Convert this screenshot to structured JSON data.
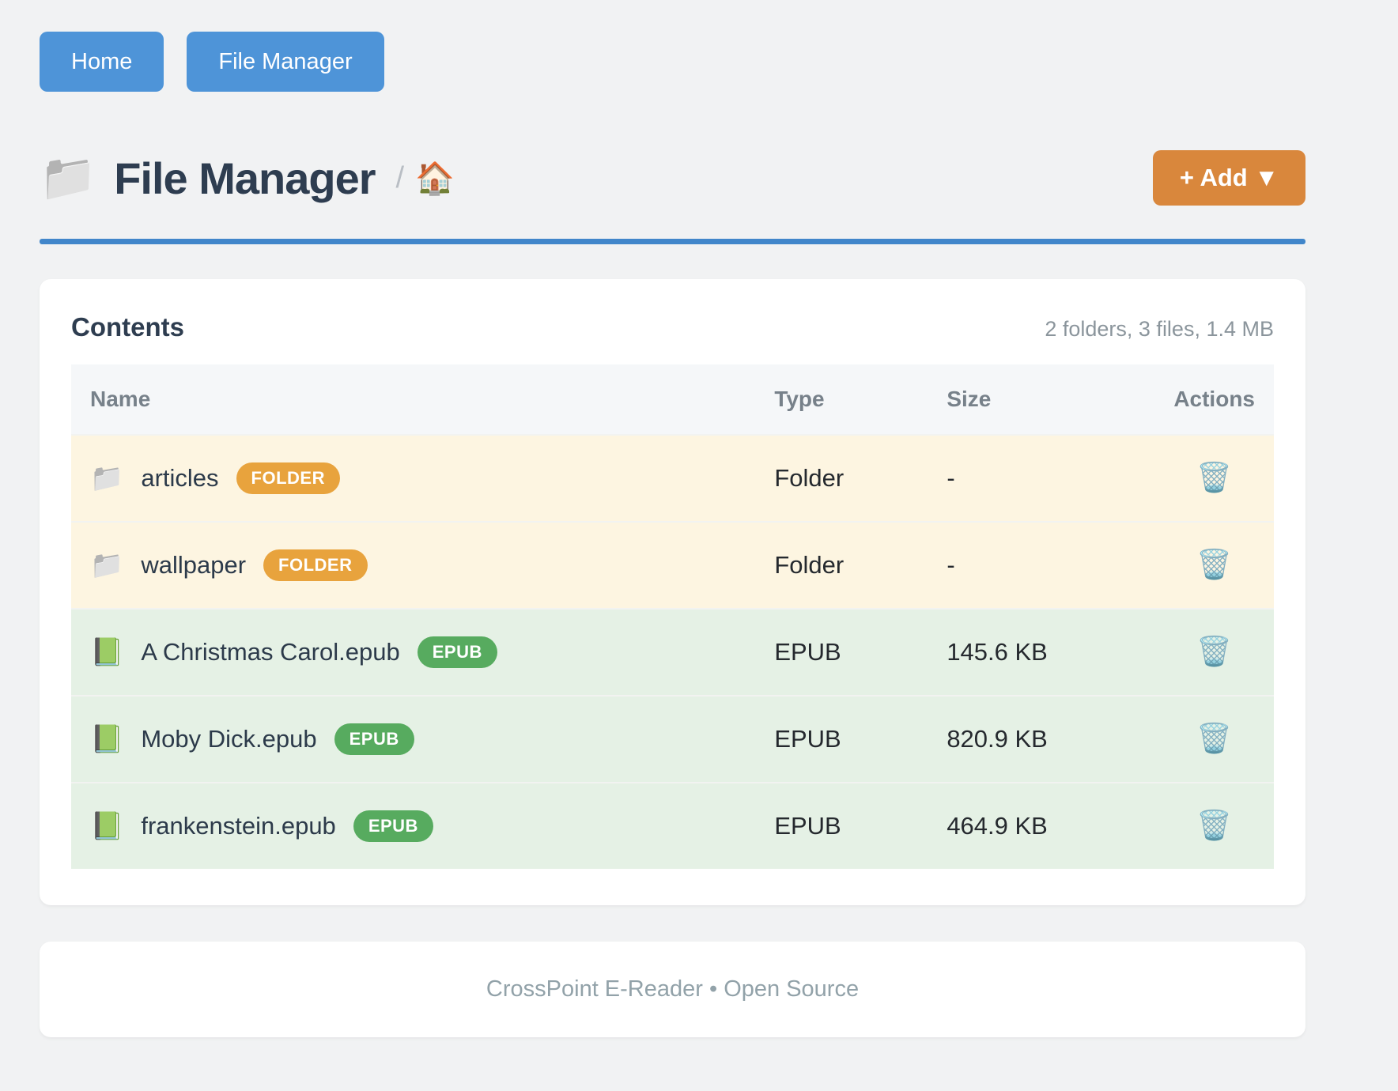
{
  "nav": {
    "buttons": [
      {
        "label": "Home"
      },
      {
        "label": "File Manager"
      }
    ]
  },
  "header": {
    "title_icon": "📁",
    "title": "File Manager",
    "breadcrumb_separator": "/",
    "breadcrumb_home_icon": "🏠",
    "add_button_label": "+ Add ▼"
  },
  "card": {
    "title": "Contents",
    "summary": "2 folders, 3 files, 1.4 MB",
    "table": {
      "columns": [
        "Name",
        "Type",
        "Size",
        "Actions"
      ],
      "rows": [
        {
          "icon": "📁",
          "name": "articles",
          "badge": "FOLDER",
          "type": "Folder",
          "size": "-",
          "action_icon": "🗑️"
        },
        {
          "icon": "📁",
          "name": "wallpaper",
          "badge": "FOLDER",
          "type": "Folder",
          "size": "-",
          "action_icon": "🗑️"
        },
        {
          "icon": "📗",
          "name": "A Christmas Carol.epub",
          "badge": "EPUB",
          "type": "EPUB",
          "size": "145.6 KB",
          "action_icon": "🗑️"
        },
        {
          "icon": "📗",
          "name": "Moby Dick.epub",
          "badge": "EPUB",
          "type": "EPUB",
          "size": "820.9 KB",
          "action_icon": "🗑️"
        },
        {
          "icon": "📗",
          "name": "frankenstein.epub",
          "badge": "EPUB",
          "type": "EPUB",
          "size": "464.9 KB",
          "action_icon": "🗑️"
        }
      ]
    }
  },
  "footer": {
    "text": "CrossPoint E-Reader • Open Source"
  },
  "colors": {
    "nav_button_blue": "#4e94d8",
    "rule_blue": "#4186ca",
    "add_button_orange": "#d9873c",
    "folder_badge_orange": "#e8a33d",
    "epub_badge_green": "#57ab5f",
    "folder_row_bg": "#fdf5e1",
    "epub_row_bg": "#e5f1e5"
  }
}
